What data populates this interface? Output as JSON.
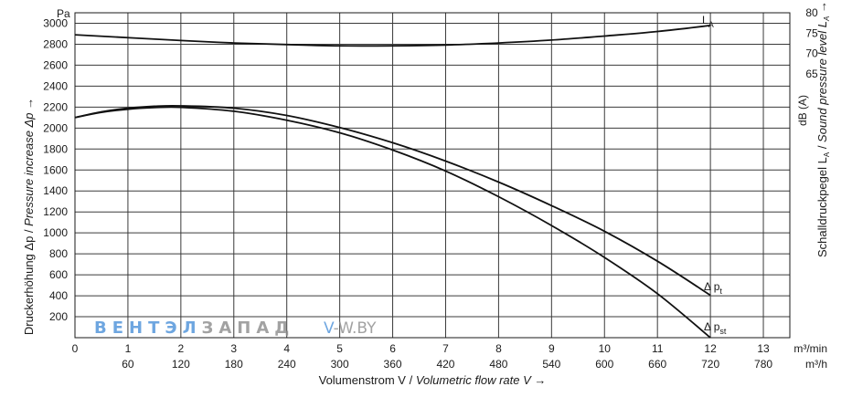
{
  "chart_data": {
    "type": "line",
    "x_axis": {
      "label": "Volumenstrom V / Volumetric flow rate V →",
      "label_parts": [
        "Volumenstrom V / ",
        "Volumetric flow rate V →"
      ],
      "unit_primary": "m³/min",
      "unit_secondary": "m³/h",
      "range": [
        0,
        13.5
      ],
      "ticks": [
        0,
        1,
        2,
        3,
        4,
        5,
        6,
        7,
        8,
        9,
        10,
        11,
        12,
        13
      ],
      "tick_labels_primary": [
        "0",
        "1",
        "2",
        "3",
        "4",
        "5",
        "6",
        "7",
        "8",
        "9",
        "10",
        "11",
        "12",
        "13"
      ],
      "tick_labels_secondary": [
        "",
        "60",
        "120",
        "180",
        "240",
        "300",
        "360",
        "420",
        "480",
        "540",
        "600",
        "660",
        "720",
        "780"
      ]
    },
    "y_axis_left": {
      "label": "Druckerhöhung Δp / Pressure increase Δp →",
      "label_parts": [
        "Druckerhöhung Δp / ",
        "Pressure increase Δp →"
      ],
      "unit": "Pa",
      "range": [
        0,
        3100
      ],
      "ticks": [
        200,
        400,
        600,
        800,
        1000,
        1200,
        1400,
        1600,
        1800,
        2000,
        2200,
        2400,
        2600,
        2800,
        3000
      ]
    },
    "y_axis_right": {
      "label": "Schalldruckpegel LA / Sound pressure level LA →",
      "label_parts": [
        "Schalldruckpegel L",
        "A",
        " / ",
        "Sound pressure level L",
        "A",
        " →"
      ],
      "unit": "dB (A)",
      "ticks": [
        65,
        70,
        75,
        80
      ],
      "tick_labels": [
        "65",
        "70",
        "75",
        "80"
      ],
      "mapping_note": ""
    },
    "series": [
      {
        "name": "Δ pt",
        "label_main": "Δ p",
        "label_sub": "t",
        "x": [
          0,
          0.5,
          1,
          1.5,
          2,
          3,
          4,
          5,
          6,
          7,
          8,
          9,
          10,
          11,
          12
        ],
        "y": [
          2100,
          2155,
          2190,
          2208,
          2212,
          2190,
          2120,
          2005,
          1860,
          1685,
          1485,
          1260,
          1015,
          730,
          405
        ]
      },
      {
        "name": "Δ pst",
        "label_main": "Δ p",
        "label_sub": "st",
        "x": [
          0,
          0.5,
          1,
          1.5,
          2,
          3,
          4,
          5,
          6,
          7,
          8,
          9,
          10,
          11,
          12
        ],
        "y": [
          2100,
          2150,
          2180,
          2195,
          2198,
          2160,
          2075,
          1955,
          1790,
          1590,
          1345,
          1070,
          765,
          420,
          0
        ]
      },
      {
        "name": "LA",
        "label_main": "L",
        "label_sub": "A",
        "axis": "right",
        "x": [
          0,
          2,
          3,
          4,
          5,
          6,
          7,
          8,
          9,
          10,
          11,
          12
        ],
        "y": [
          74.6,
          73.2,
          72.6,
          72.2,
          71.9,
          71.9,
          72.1,
          72.6,
          73.3,
          74.3,
          75.4,
          76.9
        ]
      }
    ],
    "grid": true,
    "legend": "inline labels at curve ends"
  },
  "watermark": {
    "left_text": "ВЕНТЭЛЗАПАД",
    "left_colored_part": "ВЕНТЭЛ",
    "left_gray_part": "ЗАПАД",
    "right_text": "V-W.BY",
    "right_prefix": "V",
    "right_rest": "-W.BY",
    "colors": {
      "blue": "#4a90d9",
      "gray": "#8c8c8c"
    }
  }
}
